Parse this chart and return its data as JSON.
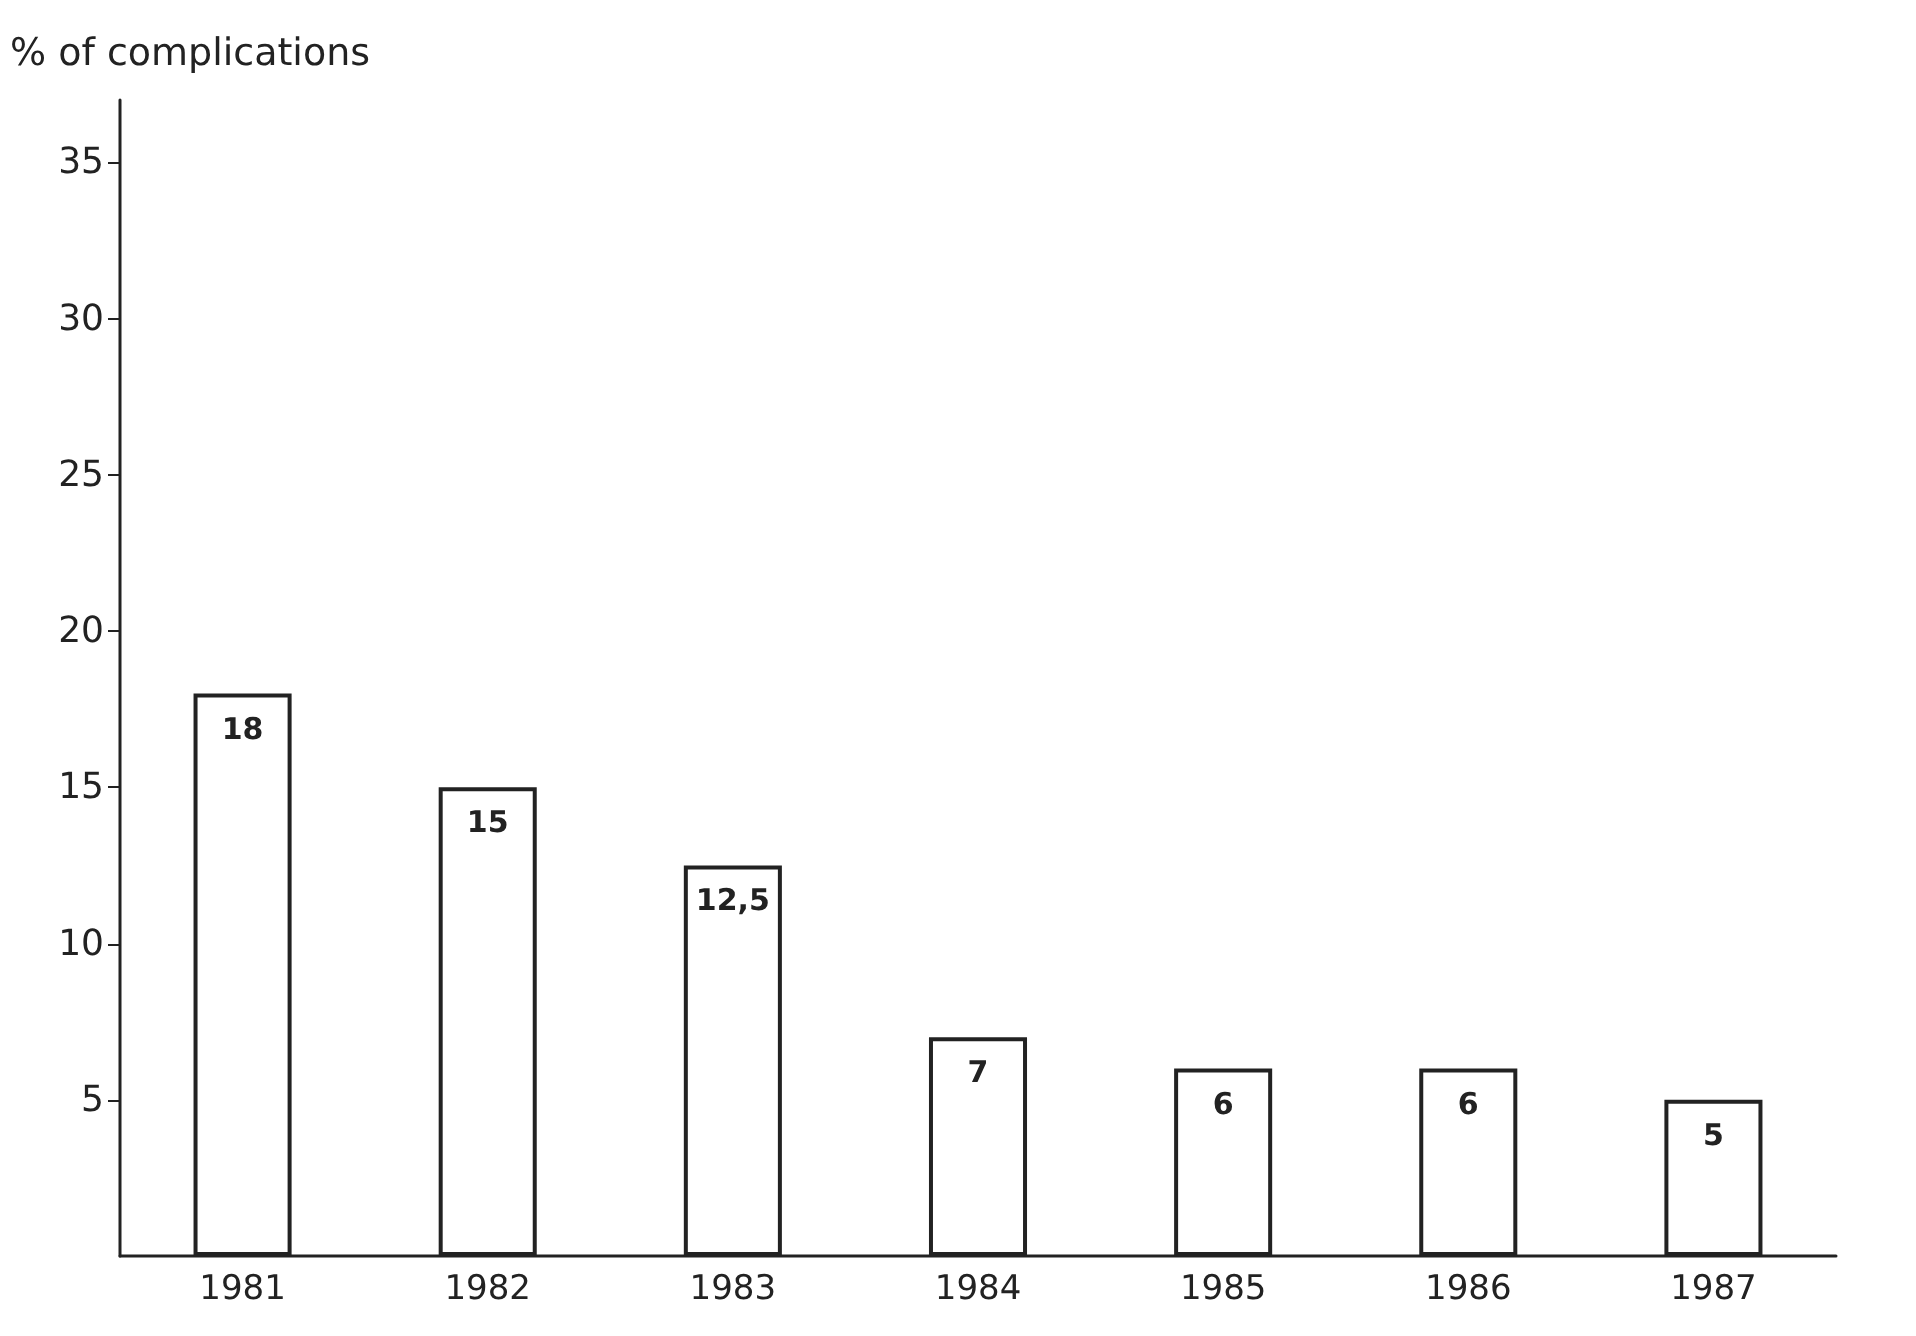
{
  "chart_data": {
    "type": "bar",
    "ylabel": "% of complications",
    "categories": [
      "1981",
      "1982",
      "1983",
      "1984",
      "1985",
      "1986",
      "1987"
    ],
    "values": [
      18,
      15,
      12.5,
      7,
      6,
      6,
      5
    ],
    "value_labels": [
      "18",
      "15",
      "12,5",
      "7",
      "6",
      "6",
      "5"
    ],
    "color": "#ffffff",
    "ylim": [
      0,
      37
    ],
    "yticks": [
      5,
      10,
      15,
      20,
      25,
      30,
      35
    ],
    "grid": false
  }
}
